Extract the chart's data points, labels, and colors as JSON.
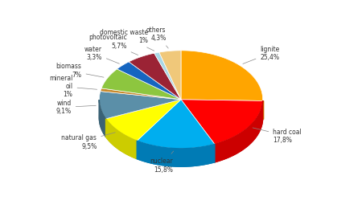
{
  "labels": [
    "lignite",
    "hard coal",
    "nuclear",
    "natural gas",
    "wind",
    "mineral oil",
    "biomass",
    "water",
    "photovoltaic",
    "domestic waste",
    "others"
  ],
  "display_labels": [
    "lignite",
    "hard coal",
    "nuclear",
    "natural gas",
    "wind",
    "mineral\noil",
    "biomass",
    "water",
    "photovoltaic",
    "domestic waste",
    "others"
  ],
  "values": [
    25.4,
    17.8,
    15.8,
    9.5,
    9.1,
    1.0,
    7.0,
    3.3,
    5.7,
    1.0,
    4.3
  ],
  "pct_labels": [
    "25,4%",
    "17,8%",
    "15,8%",
    "9,5%",
    "9,1%",
    "1%",
    "7%",
    "3,3%",
    "5,7%",
    "1%",
    "4,3%"
  ],
  "colors": [
    "#FFA500",
    "#FF0000",
    "#00AEEF",
    "#FFFF00",
    "#5B8FA8",
    "#C8882A",
    "#8DC63F",
    "#1565C0",
    "#9B2335",
    "#AAD8E6",
    "#F0C87A"
  ],
  "dark_colors": [
    "#CC7A00",
    "#CC0000",
    "#007BB5",
    "#CCCC00",
    "#3A6275",
    "#9A6018",
    "#6A9A2F",
    "#0D3D72",
    "#6B1A24",
    "#6AA0B0",
    "#C0A050"
  ],
  "startangle": 90,
  "depth": 0.08,
  "figsize": [
    4.5,
    2.7
  ],
  "dpi": 100
}
